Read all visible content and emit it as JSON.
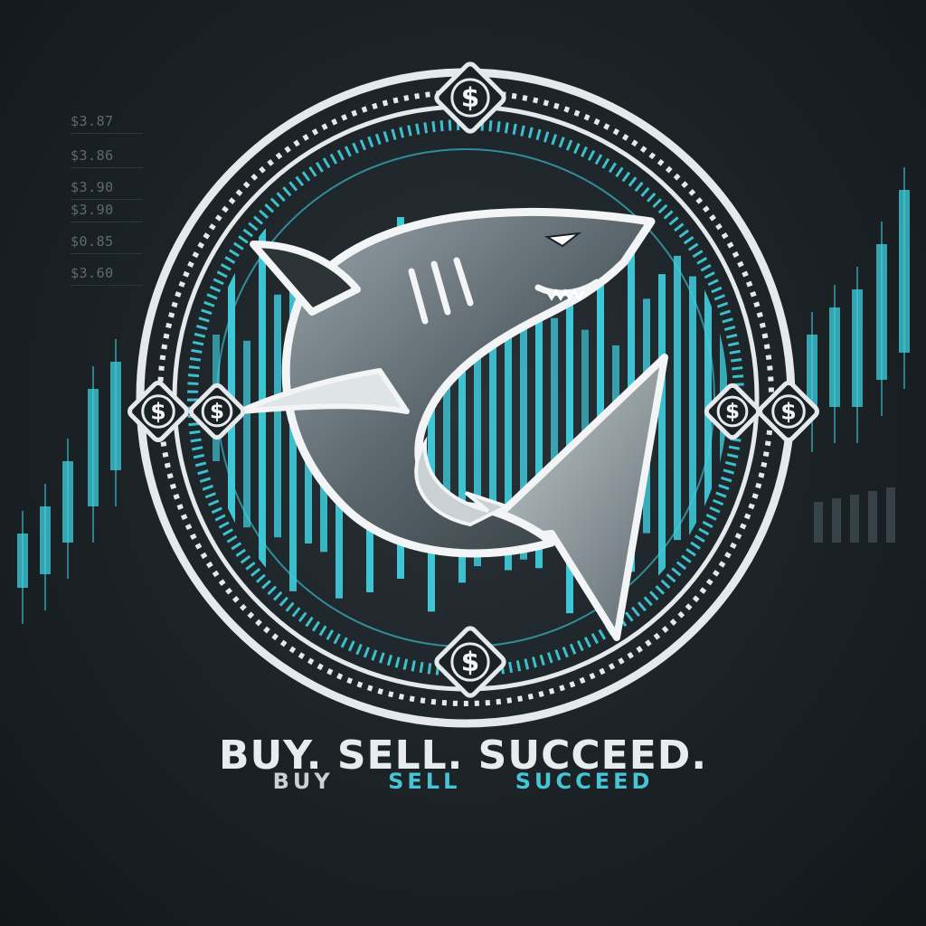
{
  "price_ticker": [
    "$3.87",
    "$3.86",
    "$3.90",
    "$3.90",
    "$0.85",
    "$3.60"
  ],
  "coin_symbol": "$",
  "tagline": {
    "main": "BUY. SELL. SUCCEED.",
    "sub": [
      "BUY",
      "SELL",
      "SUCCEED"
    ]
  },
  "emblem": {
    "icon": "shark-icon",
    "ring_icon": "dollar-coin-icon"
  },
  "colors": {
    "background": "#1b2226",
    "accent": "#3fd0e0",
    "ring": "#e6e9eb",
    "shark_body": "#4e5a60",
    "shark_belly": "#b9c2c6",
    "sub_text": "#49c4d6"
  }
}
